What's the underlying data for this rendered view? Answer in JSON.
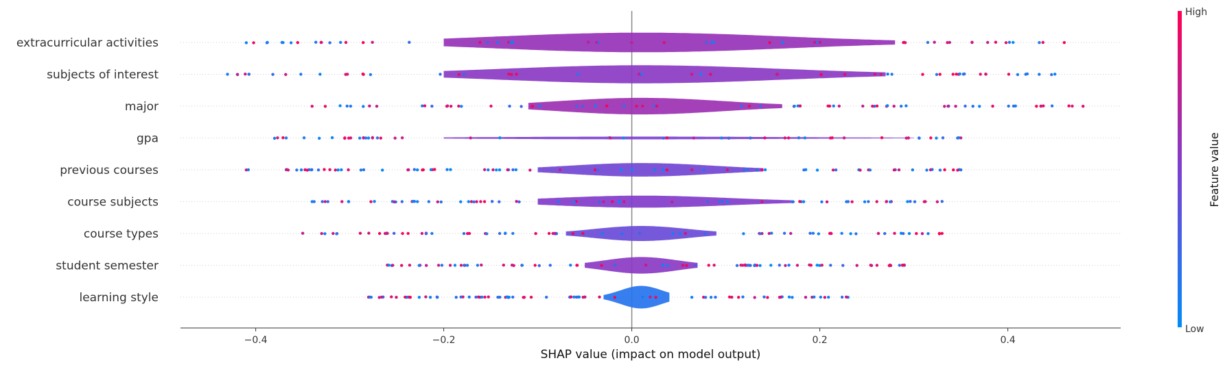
{
  "chart_data": {
    "type": "violin",
    "title": "",
    "xlabel": "SHAP value (impact on model output)",
    "ylabel": "",
    "xlim": [
      -0.48,
      0.52
    ],
    "xticks": [
      -0.4,
      -0.2,
      0.0,
      0.2,
      0.4
    ],
    "xtick_labels": [
      "−0.4",
      "−0.2",
      "0.0",
      "0.2",
      "0.4"
    ],
    "colorbar": {
      "title": "Feature value",
      "high_label": "High",
      "low_label": "Low",
      "high_color": "#ff0052",
      "low_color": "#008bfb"
    },
    "features": [
      {
        "name": "extracurricular activities",
        "range": [
          -0.41,
          0.46
        ],
        "core": [
          -0.2,
          0.28
        ],
        "peak": 0.013,
        "mean_value": 0.6
      },
      {
        "name": "subjects of interest",
        "range": [
          -0.43,
          0.45
        ],
        "core": [
          -0.2,
          0.27
        ],
        "peak": 0.012,
        "mean_value": 0.55
      },
      {
        "name": "major",
        "range": [
          -0.34,
          0.48
        ],
        "core": [
          -0.11,
          0.16
        ],
        "peak": 0.011,
        "mean_value": 0.62
      },
      {
        "name": "gpa",
        "range": [
          -0.38,
          0.35
        ],
        "core": [
          -0.2,
          0.3
        ],
        "peak": 0.0016,
        "mean_value": 0.5
      },
      {
        "name": "previous courses",
        "range": [
          -0.41,
          0.35
        ],
        "core": [
          -0.1,
          0.14
        ],
        "peak": 0.009,
        "mean_value": 0.45
      },
      {
        "name": "course subjects",
        "range": [
          -0.34,
          0.33
        ],
        "core": [
          -0.1,
          0.17
        ],
        "peak": 0.008,
        "mean_value": 0.52
      },
      {
        "name": "course types",
        "range": [
          -0.35,
          0.33
        ],
        "core": [
          -0.07,
          0.09
        ],
        "peak": 0.01,
        "mean_value": 0.42
      },
      {
        "name": "student semester",
        "range": [
          -0.26,
          0.29
        ],
        "core": [
          -0.05,
          0.07
        ],
        "peak": 0.011,
        "mean_value": 0.55
      },
      {
        "name": "learning style",
        "range": [
          -0.28,
          0.23
        ],
        "core": [
          -0.03,
          0.04
        ],
        "peak": 0.015,
        "mean_value": 0.15
      }
    ]
  }
}
